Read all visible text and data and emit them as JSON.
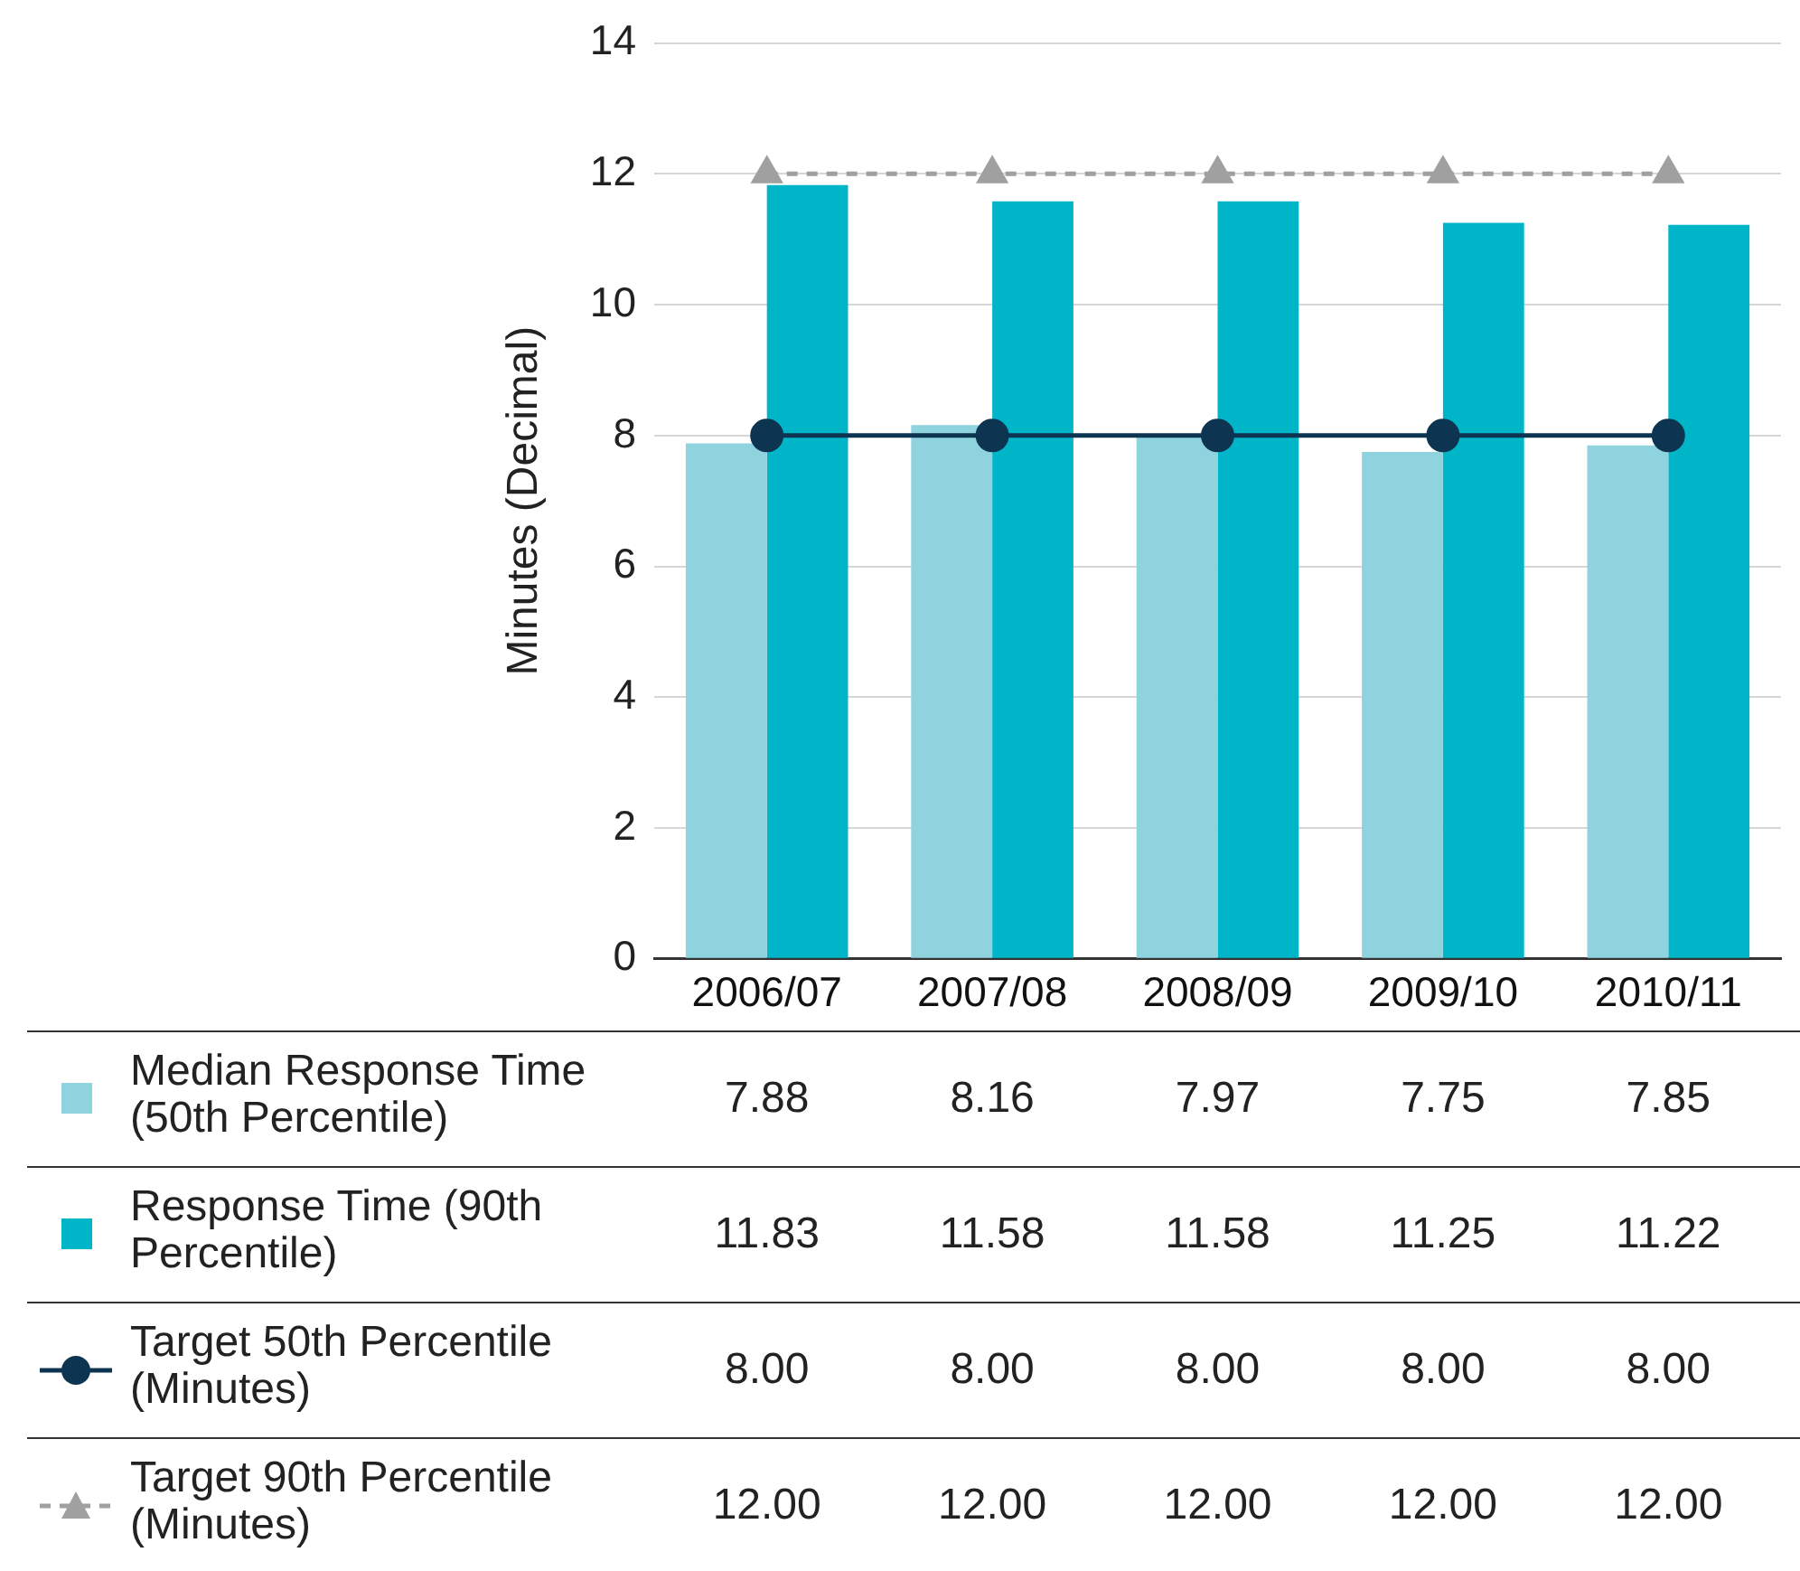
{
  "chart_data": {
    "type": "bar",
    "ylabel": "Minutes (Decimal)",
    "categories": [
      "2006/07",
      "2007/08",
      "2008/09",
      "2009/10",
      "2010/11"
    ],
    "ylim": [
      0,
      14
    ],
    "yticks": [
      0,
      2,
      4,
      6,
      8,
      10,
      12,
      14
    ],
    "grid": "y",
    "legend": "bottom left",
    "series": [
      {
        "name": "Median Response Time (50th Percentile)",
        "color": "#8fd3df",
        "values": [
          7.88,
          8.16,
          7.97,
          7.75,
          7.85
        ],
        "value_labels": [
          "7.88",
          "8.16",
          "7.97",
          "7.75",
          "7.85"
        ]
      },
      {
        "name": "Response Time (90th Percentile)",
        "color": "#00b5c8",
        "values": [
          11.83,
          11.58,
          11.58,
          11.25,
          11.22
        ],
        "value_labels": [
          "11.83",
          "11.58",
          "11.58",
          "11.25",
          "11.22"
        ]
      },
      {
        "name": "Target 50th Percentile (Minutes)",
        "type": "line",
        "color": "#0d3552",
        "marker": "circle",
        "line_style": "solid",
        "values": [
          8,
          8,
          8,
          8,
          8
        ],
        "value_labels": [
          "8.00",
          "8.00",
          "8.00",
          "8.00",
          "8.00"
        ]
      },
      {
        "name": "Target 90th Percentile (Minutes)",
        "type": "line",
        "color": "#a0a0a0",
        "marker": "triangle",
        "line_style": "dashed",
        "values": [
          12,
          12,
          12,
          12,
          12
        ],
        "value_labels": [
          "12.00",
          "12.00",
          "12.00",
          "12.00",
          "12.00"
        ]
      }
    ]
  }
}
